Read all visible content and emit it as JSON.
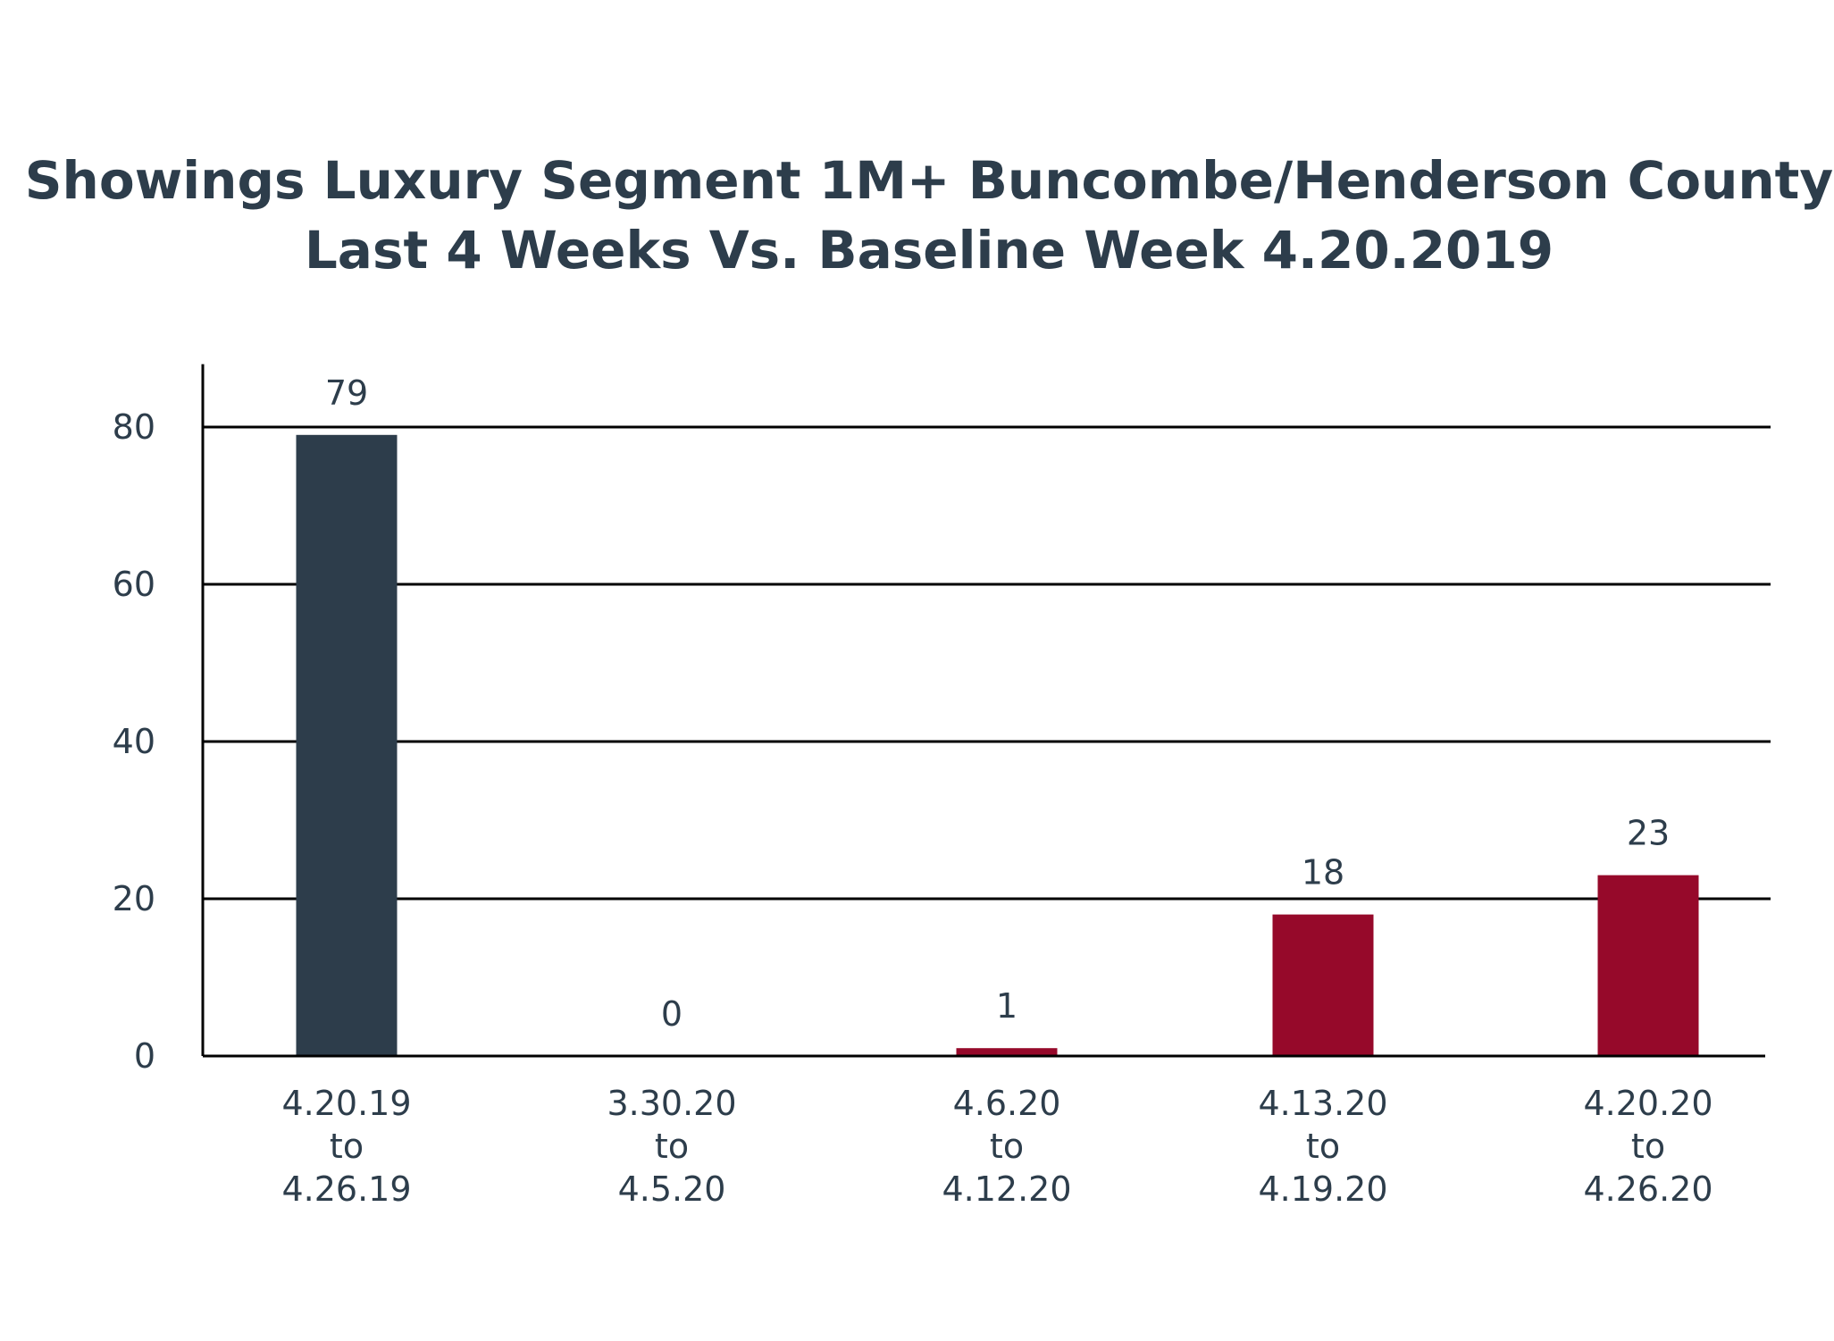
{
  "chart_data": {
    "type": "bar",
    "title_lines": [
      "Showings Luxury Segment 1M+ Buncombe/Henderson County",
      "Last 4 Weeks Vs. Baseline Week 4.20.2019"
    ],
    "categories": [
      [
        "4.20.19",
        "to",
        "4.26.19"
      ],
      [
        "3.30.20",
        "to",
        "4.5.20"
      ],
      [
        "4.6.20",
        "to",
        "4.12.20"
      ],
      [
        "4.13.20",
        "to",
        "4.19.20"
      ],
      [
        "4.20.20",
        "to",
        "4.26.20"
      ]
    ],
    "values": [
      79,
      0,
      1,
      18,
      23
    ],
    "data_labels": [
      "79",
      "0",
      "1",
      "18",
      "23"
    ],
    "bar_colors": [
      "#2d3d4b",
      "#96092a",
      "#96092a",
      "#96092a",
      "#96092a"
    ],
    "ylim": [
      0,
      88
    ],
    "yticks": [
      0,
      20,
      40,
      60,
      80
    ],
    "grid": true,
    "xlabel": "",
    "ylabel": ""
  }
}
